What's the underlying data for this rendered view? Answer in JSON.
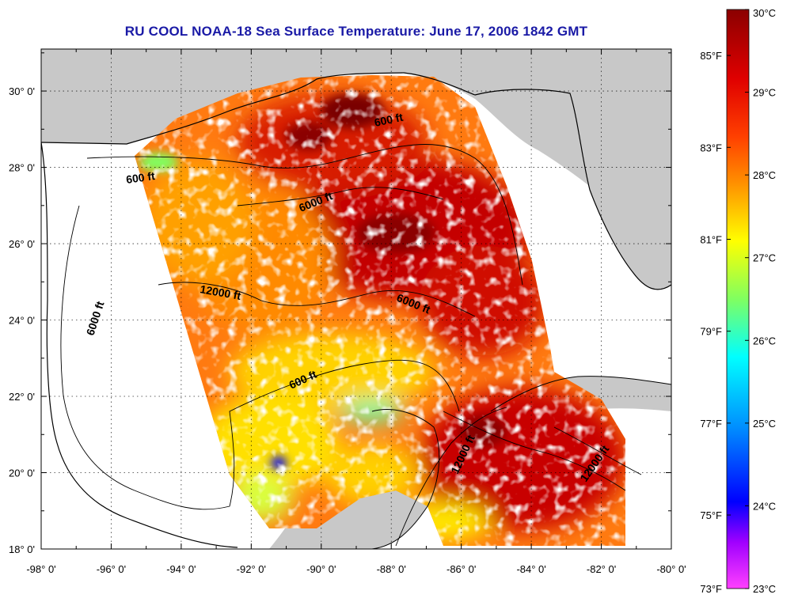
{
  "title": "RU COOL  NOAA-18  Sea Surface Temperature:  June 17, 2006 1842 GMT",
  "map": {
    "lon_ticks": [
      "-98° 0'",
      "-96° 0'",
      "-94° 0'",
      "-92° 0'",
      "-90° 0'",
      "-88° 0'",
      "-86° 0'",
      "-84° 0'",
      "-82° 0'",
      "-80° 0'"
    ],
    "lat_ticks": [
      "18° 0'",
      "20° 0'",
      "22° 0'",
      "24° 0'",
      "26° 0'",
      "28° 0'",
      "30° 0'"
    ],
    "lon_range": [
      -98,
      -80
    ],
    "lat_range": [
      18,
      31.1
    ],
    "contour_labels": [
      "600 ft",
      "600 ft",
      "600 ft",
      "6000 ft",
      "6000 ft",
      "6000 ft",
      "12000 ft",
      "12000 ft",
      "12000 ft"
    ],
    "colors": {
      "land": "#c8c8c8",
      "water_no_data": "#ffffff",
      "title": "#1a1aa6"
    }
  },
  "colorbar": {
    "celsius_labels": [
      "30°C",
      "29°C",
      "28°C",
      "27°C",
      "26°C",
      "25°C",
      "24°C",
      "23°C"
    ],
    "fahrenheit_labels": [
      "85°F",
      "83°F",
      "81°F",
      "79°F",
      "77°F",
      "75°F",
      "73°F"
    ],
    "celsius_range": [
      23,
      30
    ],
    "stops": [
      {
        "offset": 0.0,
        "color": "#8b0000"
      },
      {
        "offset": 0.12,
        "color": "#e00000"
      },
      {
        "offset": 0.22,
        "color": "#ff4000"
      },
      {
        "offset": 0.3,
        "color": "#ff9000"
      },
      {
        "offset": 0.4,
        "color": "#ffff00"
      },
      {
        "offset": 0.5,
        "color": "#80ff60"
      },
      {
        "offset": 0.6,
        "color": "#00ffff"
      },
      {
        "offset": 0.72,
        "color": "#0090ff"
      },
      {
        "offset": 0.85,
        "color": "#0000ff"
      },
      {
        "offset": 0.92,
        "color": "#a000ff"
      },
      {
        "offset": 1.0,
        "color": "#ff40ff"
      }
    ]
  }
}
